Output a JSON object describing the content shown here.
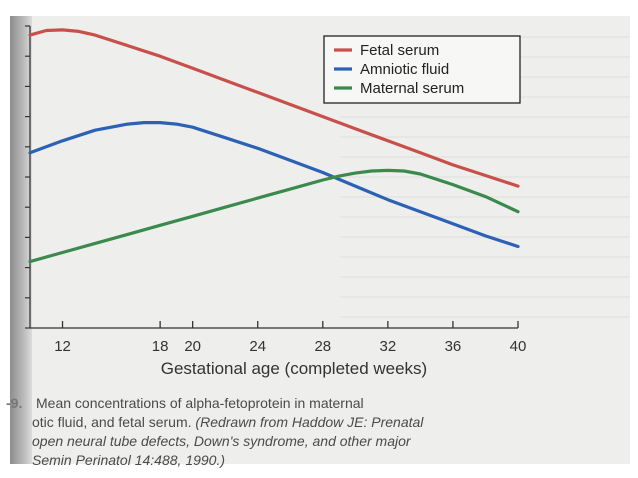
{
  "chart_data": {
    "type": "line",
    "xlabel": "Gestational age (completed weeks)",
    "ylabel": "",
    "xlim": [
      10,
      40
    ],
    "ylim": [
      0,
      100
    ],
    "xticks": [
      12,
      18,
      20,
      24,
      28,
      32,
      36,
      40
    ],
    "legend_position": "top-right",
    "grid": false,
    "series": [
      {
        "name": "Fetal serum",
        "color": "#c8504a",
        "x": [
          10,
          11,
          12,
          13,
          14,
          16,
          18,
          20,
          22,
          24,
          26,
          28,
          30,
          32,
          34,
          36,
          38,
          40
        ],
        "y": [
          97,
          98.5,
          98.7,
          98.2,
          97,
          93.5,
          90,
          86,
          82,
          78,
          74,
          70,
          66,
          62,
          58,
          54,
          50.5,
          47
        ]
      },
      {
        "name": "Amniotic fluid",
        "color": "#2c62b5",
        "x": [
          10,
          12,
          14,
          16,
          17,
          18,
          19,
          20,
          22,
          24,
          26,
          28,
          30,
          32,
          34,
          36,
          38,
          40
        ],
        "y": [
          58,
          62,
          65.5,
          67.5,
          68,
          68,
          67.5,
          66.5,
          63,
          59.5,
          55.5,
          51.5,
          47,
          42.5,
          38.5,
          34.5,
          30.5,
          27
        ]
      },
      {
        "name": "Maternal serum",
        "color": "#3a8a4e",
        "x": [
          10,
          12,
          14,
          16,
          18,
          20,
          22,
          24,
          26,
          28,
          29,
          30,
          31,
          32,
          33,
          34,
          36,
          38,
          40
        ],
        "y": [
          22,
          25,
          28,
          31,
          34,
          37,
          40,
          43,
          46,
          49,
          50.3,
          51.3,
          52,
          52.2,
          52,
          51,
          47.5,
          43.5,
          38.5
        ]
      }
    ]
  },
  "caption": {
    "fig_label": "-9.",
    "line1": "Mean concentrations of alpha-fetoprotein in maternal",
    "line2_plain": "otic fluid, and fetal serum. ",
    "line2_italic": "(Redrawn from Haddow JE: Prenatal",
    "line3": "open neural tube defects, Down's syndrome, and other major",
    "line4": "Semin Perinatol 14:488, 1990.)"
  }
}
